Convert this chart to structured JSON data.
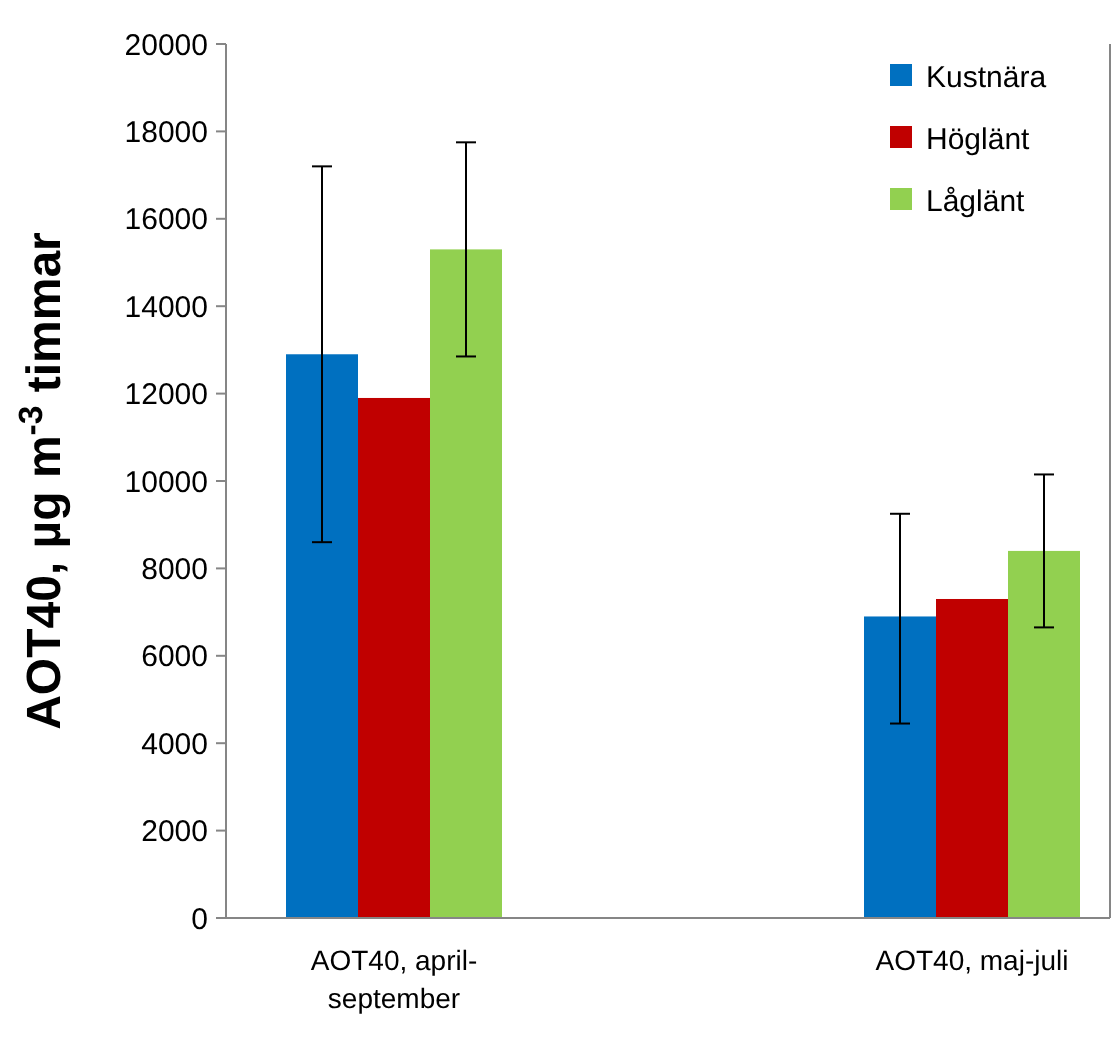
{
  "chart_data": {
    "type": "bar",
    "ylabel": "AOT40, µg m$^{-3}$ timmar",
    "categories": [
      "AOT40, april-september",
      "AOT40, maj-juli"
    ],
    "series": [
      {
        "name": "Kustnära",
        "color": "#0070c0",
        "values": [
          12900,
          6900
        ],
        "errors": [
          [
            8600,
            17200
          ],
          [
            4450,
            9250
          ]
        ]
      },
      {
        "name": "Höglänt",
        "color": "#c00000",
        "values": [
          11900,
          7300
        ]
      },
      {
        "name": "Låglänt",
        "color": "#92d050",
        "values": [
          15300,
          8400
        ],
        "errors": [
          [
            12850,
            17750
          ],
          [
            6650,
            10150
          ]
        ]
      }
    ],
    "ylim": [
      0,
      20000
    ],
    "yticks": [
      0,
      2000,
      4000,
      6000,
      8000,
      10000,
      12000,
      14000,
      16000,
      18000,
      20000
    ],
    "grid": false,
    "legend": "top right"
  }
}
